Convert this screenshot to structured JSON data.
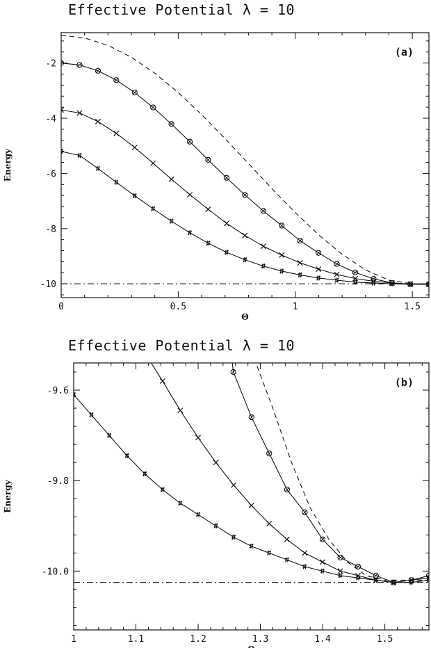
{
  "chart_data": [
    {
      "type": "line",
      "panel": "(a)",
      "title": "Effective Potential λ = 10",
      "xlabel": "Θ",
      "ylabel": "Energy",
      "xlim": [
        0,
        1.5708
      ],
      "ylim": [
        -10.5,
        -0.9
      ],
      "xticks": [
        0,
        0.5,
        1,
        1.5
      ],
      "xtick_labels": [
        "0",
        "0.5",
        "1",
        "1.5"
      ],
      "yticks": [
        -10,
        -8,
        -6,
        -4,
        -2
      ],
      "ytick_labels": [
        "-10",
        "-8",
        "-6",
        "-4",
        "-2"
      ],
      "grid": false,
      "legend": "none",
      "series": [
        {
          "style": "dashed",
          "marker": "none",
          "x": [
            0,
            0.1,
            0.2,
            0.3,
            0.4,
            0.5,
            0.6,
            0.7,
            0.8,
            0.9,
            1.0,
            1.1,
            1.2,
            1.3,
            1.4,
            1.5,
            1.5708
          ],
          "y": [
            -1.0,
            -1.09,
            -1.36,
            -1.79,
            -2.37,
            -3.07,
            -3.87,
            -4.74,
            -5.64,
            -6.55,
            -7.42,
            -8.23,
            -8.93,
            -9.5,
            -9.87,
            -10.0,
            -10.0
          ]
        },
        {
          "style": "solid",
          "marker": "circle-cross",
          "x": [
            0,
            0.0785,
            0.157,
            0.2355,
            0.314,
            0.3925,
            0.471,
            0.5495,
            0.628,
            0.7065,
            0.785,
            0.8635,
            0.942,
            1.0205,
            1.099,
            1.1775,
            1.256,
            1.3345,
            1.413,
            1.4915,
            1.5708
          ],
          "y": [
            -2.0,
            -2.07,
            -2.28,
            -2.62,
            -3.07,
            -3.61,
            -4.21,
            -4.85,
            -5.51,
            -6.16,
            -6.78,
            -7.36,
            -7.89,
            -8.44,
            -8.88,
            -9.28,
            -9.59,
            -9.82,
            -9.97,
            -10.02,
            -10.02
          ]
        },
        {
          "style": "solid",
          "marker": "x",
          "x": [
            0,
            0.0785,
            0.157,
            0.2355,
            0.314,
            0.3925,
            0.471,
            0.5495,
            0.628,
            0.7065,
            0.785,
            0.8635,
            0.942,
            1.0205,
            1.099,
            1.1775,
            1.256,
            1.3345,
            1.413,
            1.4915,
            1.5708
          ],
          "y": [
            -3.7,
            -3.81,
            -4.12,
            -4.55,
            -5.06,
            -5.63,
            -6.21,
            -6.77,
            -7.3,
            -7.81,
            -8.25,
            -8.64,
            -8.96,
            -9.24,
            -9.47,
            -9.66,
            -9.81,
            -9.91,
            -9.97,
            -10.01,
            -10.02
          ]
        },
        {
          "style": "solid",
          "marker": "hash",
          "x": [
            0,
            0.0785,
            0.157,
            0.2355,
            0.314,
            0.3925,
            0.471,
            0.5495,
            0.628,
            0.7065,
            0.785,
            0.8635,
            0.942,
            1.0205,
            1.099,
            1.1775,
            1.256,
            1.3345,
            1.413,
            1.4915,
            1.5708
          ],
          "y": [
            -5.2,
            -5.35,
            -5.82,
            -6.32,
            -6.81,
            -7.28,
            -7.73,
            -8.15,
            -8.53,
            -8.86,
            -9.13,
            -9.36,
            -9.54,
            -9.68,
            -9.79,
            -9.87,
            -9.94,
            -9.97,
            -10.0,
            -10.02,
            -10.02
          ]
        },
        {
          "style": "dash-dot",
          "marker": "none",
          "x": [
            0,
            1.5708
          ],
          "y": [
            -10.0,
            -10.0
          ]
        }
      ]
    },
    {
      "type": "line",
      "panel": "(b)",
      "title": "Effective Potential λ = 10",
      "xlabel": "Θ",
      "ylabel": "Energy",
      "xlim": [
        1.0,
        1.5708
      ],
      "ylim": [
        -10.13,
        -9.54
      ],
      "xticks": [
        1,
        1.1,
        1.2,
        1.3,
        1.4,
        1.5
      ],
      "xtick_labels": [
        "1",
        "1.1",
        "1.2",
        "1.3",
        "1.4",
        "1.5"
      ],
      "yticks": [
        -10.0,
        -9.8,
        -9.6
      ],
      "ytick_labels": [
        "-10.0",
        "-9.8",
        "-9.6"
      ],
      "grid": false,
      "legend": "none",
      "series": [
        {
          "style": "dashed",
          "marker": "none",
          "x": [
            1.29,
            1.32,
            1.35,
            1.38,
            1.41,
            1.44,
            1.47,
            1.5,
            1.53,
            1.5708
          ],
          "y": [
            -9.53,
            -9.64,
            -9.76,
            -9.86,
            -9.93,
            -9.98,
            -10.01,
            -10.02,
            -10.02,
            -10.02
          ]
        },
        {
          "style": "solid",
          "marker": "circle-cross",
          "x": [
            1.254,
            1.2566,
            1.2857,
            1.3142,
            1.3428,
            1.3713,
            1.3999,
            1.4285,
            1.457,
            1.4856,
            1.5141,
            1.5427,
            1.5708
          ],
          "y": [
            -9.53,
            -9.56,
            -9.66,
            -9.74,
            -9.82,
            -9.87,
            -9.93,
            -9.97,
            -9.99,
            -10.01,
            -10.025,
            -10.02,
            -10.01
          ]
        },
        {
          "style": "solid",
          "marker": "x",
          "x": [
            1.12,
            1.1428,
            1.1713,
            1.1999,
            1.2285,
            1.257,
            1.2856,
            1.3141,
            1.3427,
            1.3713,
            1.3998,
            1.4284,
            1.4569,
            1.4855,
            1.5141,
            1.5426,
            1.5708
          ],
          "y": [
            -9.53,
            -9.58,
            -9.645,
            -9.705,
            -9.76,
            -9.81,
            -9.855,
            -9.895,
            -9.93,
            -9.96,
            -9.98,
            -10.0,
            -10.01,
            -10.02,
            -10.025,
            -10.02,
            -10.015
          ]
        },
        {
          "style": "solid",
          "marker": "hash",
          "x": [
            1.0,
            1.0285,
            1.0571,
            1.0856,
            1.1142,
            1.1428,
            1.1713,
            1.1999,
            1.2284,
            1.257,
            1.2856,
            1.3141,
            1.3427,
            1.3712,
            1.3998,
            1.4284,
            1.4569,
            1.4855,
            1.514,
            1.5426,
            1.5708
          ],
          "y": [
            -9.61,
            -9.655,
            -9.7,
            -9.745,
            -9.785,
            -9.82,
            -9.85,
            -9.875,
            -9.9,
            -9.925,
            -9.945,
            -9.96,
            -9.975,
            -9.99,
            -10.0,
            -10.01,
            -10.015,
            -10.02,
            -10.025,
            -10.025,
            -10.02
          ]
        },
        {
          "style": "dash-dot",
          "marker": "none",
          "x": [
            1.0,
            1.5708
          ],
          "y": [
            -10.025,
            -10.025
          ]
        }
      ]
    }
  ]
}
